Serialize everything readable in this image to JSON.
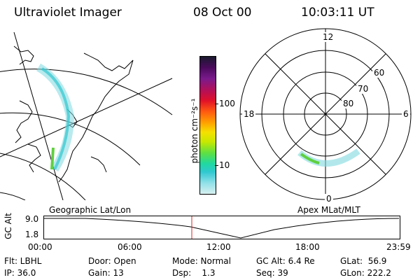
{
  "header": {
    "instrument": "Ultraviolet Imager",
    "date": "08 Oct 00",
    "time": "10:03:11 UT"
  },
  "colorbar": {
    "unit_label": "photon cm⁻²s⁻¹",
    "ticks": [
      "100",
      "10"
    ],
    "colors": [
      "#1a1a2e",
      "#4b0a5c",
      "#7a1a8c",
      "#b0105a",
      "#e0102a",
      "#ff5a10",
      "#ffa000",
      "#f5e000",
      "#c8e800",
      "#60e040",
      "#20d8a0",
      "#30c8d0",
      "#90e0e8",
      "#d8f0f0"
    ]
  },
  "left_panel": {
    "label": "Geographic Lat/Lon"
  },
  "right_panel": {
    "label": "Apex MLat/MLT",
    "mlt_labels": [
      "12",
      "18",
      "6",
      "0"
    ],
    "lat_labels": [
      "60",
      "70",
      "80"
    ]
  },
  "timeline": {
    "axis_label": "GC Alt",
    "y_ticks": [
      "9.0",
      "1.8"
    ],
    "x_ticks": [
      "00:00",
      "06:00",
      "12:00",
      "18:00",
      "23:59"
    ],
    "current_marker_time": "10:03"
  },
  "info": {
    "flt": "Flt: LBHL",
    "ip": "IP: 36.0",
    "door": "Door: Open",
    "gain": "Gain: 13",
    "mode": "Mode: Normal",
    "dsp": "Dsp:    1.3",
    "gcalt": "GC Alt: 6.4 Re",
    "seq": "Seq: 39",
    "glat": "GLat:  56.9",
    "glon": "GLon: 222.2"
  }
}
